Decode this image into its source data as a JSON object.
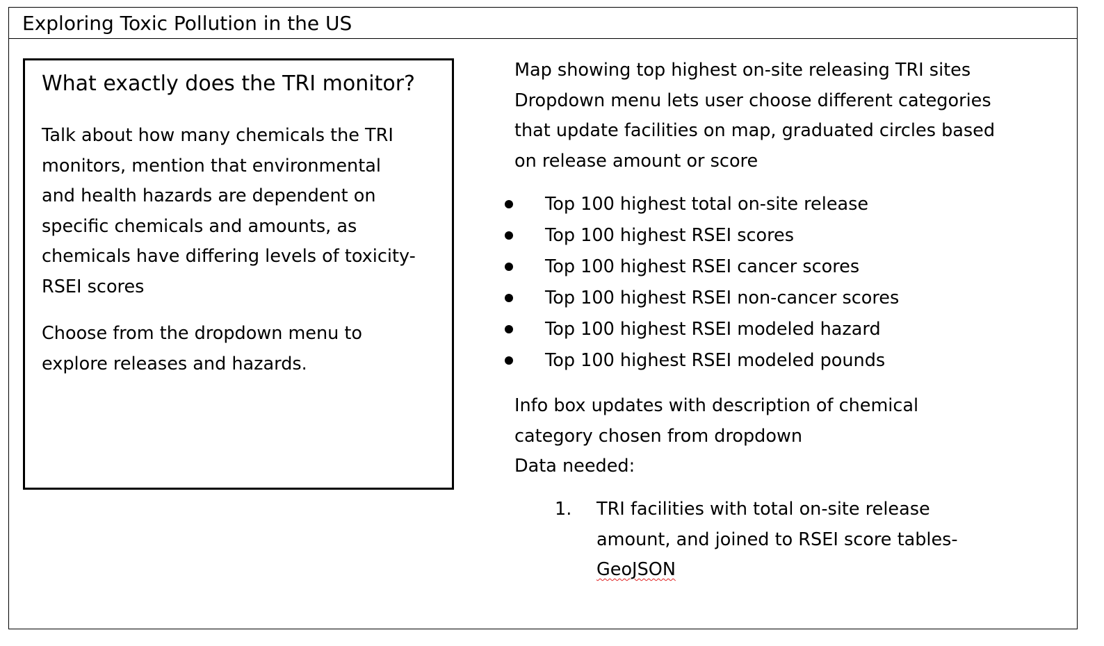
{
  "title": "Exploring Toxic Pollution in the US",
  "info_box": {
    "heading": "What exactly does the TRI monitor?",
    "paragraph1_lines": [
      "Talk about how many chemicals the TRI",
      "monitors, mention that environmental",
      "and health hazards are dependent on",
      "specific chemicals and amounts, as",
      "chemicals have differing levels of toxicity-",
      "RSEI scores"
    ],
    "paragraph2_lines": [
      "Choose from the dropdown menu to",
      "explore releases and hazards."
    ]
  },
  "right": {
    "intro_lines": [
      "Map showing top highest on-site releasing TRI sites",
      "Dropdown menu lets user choose different categories",
      "that update facilities on map, graduated circles based",
      "on release amount or score"
    ],
    "bullets": [
      "Top 100 highest total on-site release",
      "Top 100 highest RSEI scores",
      "Top 100 highest RSEI cancer scores",
      "Top 100 highest RSEI non-cancer scores",
      "Top 100 highest RSEI modeled hazard",
      "Top 100 highest RSEI modeled pounds"
    ],
    "after_lines": [
      "Info box updates with description of chemical",
      "category chosen from dropdown",
      "Data needed:"
    ],
    "numbered": {
      "marker": "1.",
      "lines": [
        "TRI facilities with total on-site release",
        "amount, and joined to RSEI score tables-",
        "GeoJSON"
      ]
    }
  }
}
